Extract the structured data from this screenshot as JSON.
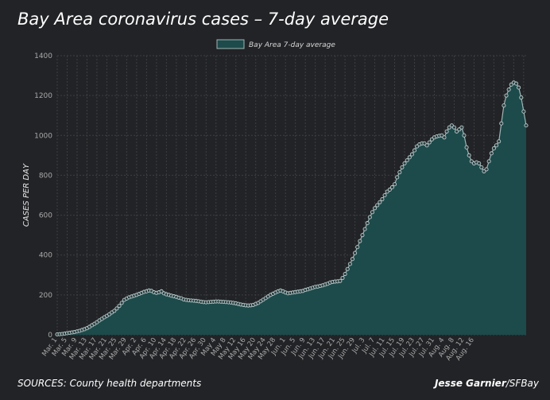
{
  "title": "Bay Area coronavirus cases – 7-day average",
  "source": "SOURCES: County health departments",
  "credit_name": "Jesse Garnier",
  "credit_org": "/SFBay",
  "colors": {
    "background": "#222326",
    "area_fill": "#1d4a4b",
    "line": "#9fb6b6",
    "marker": "#b9cfcf",
    "grid": "#3d3f44",
    "text": "#cfcfcf"
  },
  "chart_data": {
    "type": "area",
    "title": "Bay Area coronavirus cases – 7-day average",
    "xlabel": "",
    "ylabel": "CASES PER DAY",
    "ylim": [
      0,
      1400
    ],
    "yticks": [
      0,
      200,
      400,
      600,
      800,
      1000,
      1200,
      1400
    ],
    "grid": true,
    "legend_position": "top-center",
    "x_tick_labels": [
      "Mar. 1",
      "Mar. 5",
      "Mar. 9",
      "Mar. 13",
      "Mar. 17",
      "Mar. 21",
      "Mar. 25",
      "Mar. 29",
      "Apr. 2",
      "Apr. 6",
      "Apr. 10",
      "Apr. 14",
      "Apr. 18",
      "Apr. 22",
      "Apr. 26",
      "Apr. 30",
      "May 4",
      "May 8",
      "May 12",
      "May 16",
      "May 20",
      "May 24",
      "May 28",
      "Jun. 1",
      "Jun. 5",
      "Jun. 9",
      "Jun. 13",
      "Jun. 17",
      "Jun. 21",
      "Jun. 25",
      "Jun. 29",
      "Jul. 3",
      "Jul. 7",
      "Jul. 11",
      "Jul. 15",
      "Jul. 19",
      "Jul. 23",
      "Jul. 27",
      "Jul. 31",
      "Aug. 4",
      "Aug. 8",
      "Aug. 12",
      "Aug. 16"
    ],
    "series": [
      {
        "name": "Bay Area 7-day average",
        "values": [
          2,
          3,
          4,
          6,
          8,
          10,
          12,
          14,
          17,
          20,
          24,
          28,
          33,
          40,
          48,
          55,
          63,
          72,
          80,
          88,
          95,
          103,
          112,
          120,
          132,
          145,
          160,
          175,
          182,
          188,
          192,
          196,
          200,
          205,
          210,
          215,
          218,
          222,
          220,
          213,
          210,
          213,
          218,
          208,
          203,
          200,
          196,
          193,
          190,
          186,
          183,
          177,
          175,
          173,
          172,
          171,
          170,
          168,
          166,
          164,
          163,
          164,
          165,
          166,
          167,
          167,
          166,
          165,
          164,
          163,
          162,
          160,
          158,
          155,
          152,
          150,
          148,
          147,
          148,
          150,
          155,
          160,
          168,
          176,
          184,
          192,
          200,
          206,
          212,
          218,
          222,
          218,
          212,
          208,
          210,
          212,
          214,
          216,
          218,
          220,
          225,
          228,
          232,
          236,
          240,
          242,
          245,
          248,
          252,
          256,
          262,
          265,
          267,
          268,
          270,
          285,
          305,
          330,
          355,
          380,
          410,
          440,
          470,
          500,
          530,
          560,
          590,
          615,
          635,
          650,
          665,
          680,
          700,
          718,
          728,
          740,
          755,
          790,
          815,
          840,
          860,
          875,
          890,
          905,
          925,
          945,
          955,
          960,
          960,
          950,
          965,
          980,
          990,
          995,
          998,
          1000,
          990,
          1020,
          1040,
          1050,
          1040,
          1020,
          1030,
          1040,
          1000,
          940,
          900,
          870,
          860,
          865,
          860,
          840,
          820,
          830,
          870,
          910,
          935,
          950,
          970,
          1060,
          1150,
          1200,
          1230,
          1255,
          1265,
          1260,
          1240,
          1190,
          1120,
          1050
        ]
      }
    ]
  }
}
